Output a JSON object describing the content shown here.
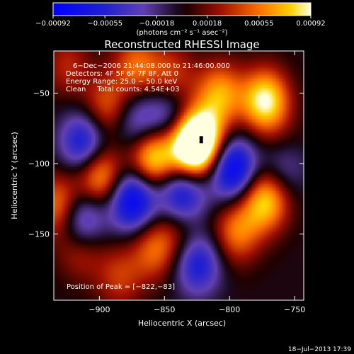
{
  "chart_data": {
    "type": "heatmap",
    "title": "Reconstructed RHESSI Image",
    "xlabel": "Heliocentric X (arcsec)",
    "ylabel": "Heliocentric Y (arcsec)",
    "xlim": [
      -935,
      -743
    ],
    "ylim": [
      -197,
      -20
    ],
    "x_ticks": [
      -900,
      -850,
      -800,
      -750
    ],
    "x_tick_labels": [
      "−900",
      "−850",
      "−800",
      "−750"
    ],
    "y_ticks": [
      -50,
      -100,
      -150
    ],
    "y_tick_labels": [
      "−50",
      "−100",
      "−150"
    ],
    "colorbar": {
      "ticks": [
        -0.00092,
        -0.00055,
        -0.00018,
        0.00018,
        0.00055,
        0.00092
      ],
      "tick_labels": [
        "−0.00092",
        "−0.00055",
        "−0.00018",
        "0.00018",
        "0.00055",
        "0.00092"
      ],
      "unit_label": "(photons cm⁻² s⁻¹ asec⁻²)",
      "vmin": -0.00092,
      "vmax": 0.00092
    },
    "annotations": [
      "6−Dec−2006 21:44:08.000 to 21:46:00.000",
      "Detectors: 4F 5F 6F 7F 8F, Att 0",
      "Energy Range: 25.0 − 50.0 keV",
      "Clean     Total counts: 4.54E+03"
    ],
    "peak_label": "Position of Peak = [−822,−83]",
    "peak_position": [
      -822,
      -83
    ],
    "components": [
      {
        "x": -895,
        "y": -60,
        "amp": 0.55
      },
      {
        "x": -900,
        "y": -108,
        "amp": 0.85
      },
      {
        "x": -872,
        "y": -30,
        "amp": 0.55
      },
      {
        "x": -860,
        "y": -95,
        "amp": 1.0
      },
      {
        "x": -845,
        "y": -38,
        "amp": 0.45
      },
      {
        "x": -830,
        "y": -88,
        "amp": 1.0
      },
      {
        "x": -822,
        "y": -83,
        "amp": 1.0
      },
      {
        "x": -808,
        "y": -50,
        "amp": 0.7
      },
      {
        "x": -773,
        "y": -55,
        "amp": 1.0
      },
      {
        "x": -773,
        "y": -125,
        "amp": 0.9
      },
      {
        "x": -795,
        "y": -148,
        "amp": 0.6
      },
      {
        "x": -760,
        "y": -92,
        "amp": 0.55
      },
      {
        "x": -930,
        "y": -130,
        "amp": 0.75
      },
      {
        "x": -915,
        "y": -158,
        "amp": 0.5
      },
      {
        "x": -858,
        "y": -160,
        "amp": 0.55
      },
      {
        "x": -838,
        "y": -145,
        "amp": 0.35
      },
      {
        "x": -885,
        "y": -180,
        "amp": 0.4
      },
      {
        "x": -925,
        "y": -30,
        "amp": 0.35
      },
      {
        "x": -798,
        "y": -103,
        "amp": -1.0
      },
      {
        "x": -760,
        "y": -98,
        "amp": -0.8
      },
      {
        "x": -875,
        "y": -125,
        "amp": -1.0
      },
      {
        "x": -912,
        "y": -85,
        "amp": -0.8
      },
      {
        "x": -915,
        "y": -140,
        "amp": -0.9
      },
      {
        "x": -837,
        "y": -122,
        "amp": -0.85
      },
      {
        "x": -872,
        "y": -72,
        "amp": -0.5
      },
      {
        "x": -825,
        "y": -170,
        "amp": -0.7
      },
      {
        "x": -848,
        "y": -65,
        "amp": -0.5
      }
    ]
  },
  "footer": {
    "date_stamp": "18−Jul−2013 17:39"
  }
}
